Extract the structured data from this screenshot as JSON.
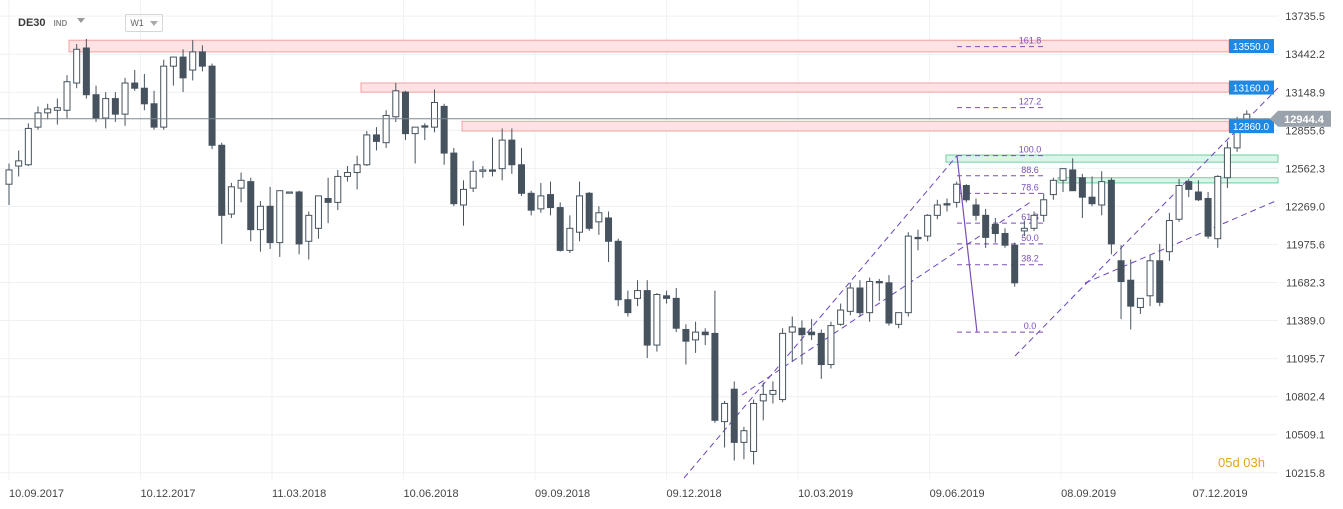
{
  "header": {
    "symbol": "DE30",
    "symbol_type": "IND",
    "timeframe": "W1"
  },
  "timer": "05d 03h",
  "colors": {
    "bull": "#ffffff",
    "bear": "#46535e",
    "wick": "#46535e",
    "resistance_fill": "#fde3e3",
    "resistance_stroke": "#f2a0a0",
    "support_fill": "#dcf5ea",
    "support_stroke": "#6fcf9f",
    "fib": "#7a4fb8",
    "channel": "#6a45c0",
    "price_tag": "#1e88e5",
    "current_tag": "#9aa3ab"
  },
  "chart_data": {
    "type": "candlestick",
    "title": "",
    "xlabel": "",
    "ylabel": "",
    "x_ticks": [
      "10.09.2017",
      "10.12.2017",
      "11.03.2018",
      "10.06.2018",
      "09.09.2018",
      "09.12.2018",
      "10.03.2019",
      "09.06.2019",
      "08.09.2019",
      "07.12.2019"
    ],
    "y_ticks": [
      "13735.5",
      "13442.2",
      "13148.9",
      "12855.6",
      "12562.3",
      "12269.0",
      "11975.6",
      "11682.3",
      "11389.0",
      "11095.7",
      "10802.4",
      "10509.1",
      "10215.8"
    ],
    "ylim": [
      10160,
      13860
    ],
    "current_price": "12944.4",
    "horizontal_levels": [
      {
        "label": "13550.0",
        "top": 13550,
        "bottom": 13460,
        "kind": "resistance"
      },
      {
        "label": "13160.0",
        "top": 13220,
        "bottom": 13150,
        "kind": "resistance"
      },
      {
        "label": "12860.0",
        "top": 12925,
        "bottom": 12850,
        "kind": "resistance"
      }
    ],
    "support_zones": [
      {
        "top": 12665,
        "bottom": 12610
      },
      {
        "top": 12490,
        "bottom": 12450
      }
    ],
    "fibonacci": {
      "low": 11300,
      "high": 12660,
      "levels": [
        {
          "label": "161.8",
          "ratio": 1.618
        },
        {
          "label": "127.2",
          "ratio": 1.272
        },
        {
          "label": "100.0",
          "ratio": 1.0
        },
        {
          "label": "88.6",
          "ratio": 0.886
        },
        {
          "label": "78.6",
          "ratio": 0.786
        },
        {
          "label": "61.8",
          "ratio": 0.618
        },
        {
          "label": "50.0",
          "ratio": 0.5
        },
        {
          "label": "38.2",
          "ratio": 0.382
        },
        {
          "label": "0.0",
          "ratio": 0.0
        }
      ]
    },
    "candles": [
      {
        "o": 12440,
        "h": 12600,
        "l": 12280,
        "c": 12550
      },
      {
        "o": 12580,
        "h": 12700,
        "l": 12500,
        "c": 12620
      },
      {
        "o": 12590,
        "h": 12910,
        "l": 12580,
        "c": 12870
      },
      {
        "o": 12880,
        "h": 13040,
        "l": 12860,
        "c": 12990
      },
      {
        "o": 12990,
        "h": 13060,
        "l": 12940,
        "c": 13020
      },
      {
        "o": 13010,
        "h": 13100,
        "l": 12900,
        "c": 13030
      },
      {
        "o": 13010,
        "h": 13280,
        "l": 12950,
        "c": 13230
      },
      {
        "o": 13220,
        "h": 13520,
        "l": 13180,
        "c": 13480
      },
      {
        "o": 13490,
        "h": 13560,
        "l": 13100,
        "c": 13130
      },
      {
        "o": 13130,
        "h": 13200,
        "l": 12920,
        "c": 12950
      },
      {
        "o": 12950,
        "h": 13150,
        "l": 12870,
        "c": 13100
      },
      {
        "o": 13100,
        "h": 13150,
        "l": 12920,
        "c": 12980
      },
      {
        "o": 12980,
        "h": 13260,
        "l": 12890,
        "c": 13220
      },
      {
        "o": 13220,
        "h": 13320,
        "l": 13160,
        "c": 13180
      },
      {
        "o": 13180,
        "h": 13290,
        "l": 13010,
        "c": 13060
      },
      {
        "o": 13060,
        "h": 13160,
        "l": 12860,
        "c": 12880
      },
      {
        "o": 12880,
        "h": 13400,
        "l": 12860,
        "c": 13350
      },
      {
        "o": 13350,
        "h": 13420,
        "l": 13200,
        "c": 13420
      },
      {
        "o": 13420,
        "h": 13480,
        "l": 13150,
        "c": 13260
      },
      {
        "o": 13320,
        "h": 13550,
        "l": 13240,
        "c": 13460
      },
      {
        "o": 13460,
        "h": 13510,
        "l": 13310,
        "c": 13350
      },
      {
        "o": 13350,
        "h": 13370,
        "l": 12710,
        "c": 12740
      },
      {
        "o": 12740,
        "h": 12760,
        "l": 11980,
        "c": 12200
      },
      {
        "o": 12210,
        "h": 12450,
        "l": 12180,
        "c": 12420
      },
      {
        "o": 12410,
        "h": 12530,
        "l": 12300,
        "c": 12470
      },
      {
        "o": 12460,
        "h": 12490,
        "l": 12000,
        "c": 12090
      },
      {
        "o": 12090,
        "h": 12310,
        "l": 11920,
        "c": 12270
      },
      {
        "o": 12270,
        "h": 12420,
        "l": 11940,
        "c": 11990
      },
      {
        "o": 11990,
        "h": 12380,
        "l": 11880,
        "c": 12390
      },
      {
        "o": 12380,
        "h": 12380,
        "l": 12380,
        "c": 12380
      },
      {
        "o": 12380,
        "h": 12390,
        "l": 11900,
        "c": 11980
      },
      {
        "o": 12000,
        "h": 12230,
        "l": 11860,
        "c": 12200
      },
      {
        "o": 12100,
        "h": 12330,
        "l": 12020,
        "c": 12350
      },
      {
        "o": 12330,
        "h": 12490,
        "l": 12140,
        "c": 12300
      },
      {
        "o": 12300,
        "h": 12550,
        "l": 12240,
        "c": 12500
      },
      {
        "o": 12500,
        "h": 12580,
        "l": 12460,
        "c": 12530
      },
      {
        "o": 12530,
        "h": 12660,
        "l": 12400,
        "c": 12590
      },
      {
        "o": 12590,
        "h": 12850,
        "l": 12580,
        "c": 12820
      },
      {
        "o": 12820,
        "h": 12880,
        "l": 12700,
        "c": 12770
      },
      {
        "o": 12760,
        "h": 13010,
        "l": 12720,
        "c": 12970
      },
      {
        "o": 12960,
        "h": 13220,
        "l": 12920,
        "c": 13160
      },
      {
        "o": 13150,
        "h": 13160,
        "l": 12780,
        "c": 12830
      },
      {
        "o": 12830,
        "h": 12880,
        "l": 12600,
        "c": 12880
      },
      {
        "o": 12890,
        "h": 12910,
        "l": 12780,
        "c": 12880
      },
      {
        "o": 12880,
        "h": 13170,
        "l": 12840,
        "c": 13070
      },
      {
        "o": 13040,
        "h": 13060,
        "l": 12590,
        "c": 12680
      },
      {
        "o": 12680,
        "h": 12720,
        "l": 12270,
        "c": 12290
      },
      {
        "o": 12280,
        "h": 12470,
        "l": 12120,
        "c": 12400
      },
      {
        "o": 12410,
        "h": 12620,
        "l": 12380,
        "c": 12540
      },
      {
        "o": 12540,
        "h": 12580,
        "l": 12490,
        "c": 12550
      },
      {
        "o": 12550,
        "h": 12800,
        "l": 12500,
        "c": 12540
      },
      {
        "o": 12560,
        "h": 12870,
        "l": 12470,
        "c": 12780
      },
      {
        "o": 12780,
        "h": 12870,
        "l": 12520,
        "c": 12590
      },
      {
        "o": 12590,
        "h": 12720,
        "l": 12350,
        "c": 12370
      },
      {
        "o": 12370,
        "h": 12390,
        "l": 12200,
        "c": 12240
      },
      {
        "o": 12250,
        "h": 12450,
        "l": 12220,
        "c": 12350
      },
      {
        "o": 12360,
        "h": 12460,
        "l": 12200,
        "c": 12260
      },
      {
        "o": 12260,
        "h": 12300,
        "l": 11920,
        "c": 11930
      },
      {
        "o": 11930,
        "h": 12200,
        "l": 11910,
        "c": 12100
      },
      {
        "o": 12070,
        "h": 12460,
        "l": 12000,
        "c": 12350
      },
      {
        "o": 12370,
        "h": 12380,
        "l": 12080,
        "c": 12100
      },
      {
        "o": 12150,
        "h": 12270,
        "l": 12050,
        "c": 12220
      },
      {
        "o": 12180,
        "h": 12230,
        "l": 11840,
        "c": 12000
      },
      {
        "o": 12000,
        "h": 12020,
        "l": 11500,
        "c": 11550
      },
      {
        "o": 11550,
        "h": 11620,
        "l": 11420,
        "c": 11450
      },
      {
        "o": 11560,
        "h": 11700,
        "l": 11500,
        "c": 11620
      },
      {
        "o": 11620,
        "h": 11700,
        "l": 11100,
        "c": 11200
      },
      {
        "o": 11200,
        "h": 11600,
        "l": 11150,
        "c": 11590
      },
      {
        "o": 11580,
        "h": 11620,
        "l": 11520,
        "c": 11560
      },
      {
        "o": 11560,
        "h": 11640,
        "l": 11300,
        "c": 11330
      },
      {
        "o": 11320,
        "h": 11360,
        "l": 11050,
        "c": 11230
      },
      {
        "o": 11240,
        "h": 11380,
        "l": 11140,
        "c": 11300
      },
      {
        "o": 11300,
        "h": 11330,
        "l": 11200,
        "c": 11280
      },
      {
        "o": 11290,
        "h": 11620,
        "l": 10600,
        "c": 10620
      },
      {
        "o": 10610,
        "h": 10770,
        "l": 10410,
        "c": 10750
      },
      {
        "o": 10860,
        "h": 10920,
        "l": 10310,
        "c": 10450
      },
      {
        "o": 10450,
        "h": 10570,
        "l": 10320,
        "c": 10540
      },
      {
        "o": 10380,
        "h": 10780,
        "l": 10280,
        "c": 10750
      },
      {
        "o": 10770,
        "h": 10910,
        "l": 10620,
        "c": 10820
      },
      {
        "o": 10820,
        "h": 10920,
        "l": 10750,
        "c": 10850
      },
      {
        "o": 10780,
        "h": 11330,
        "l": 10760,
        "c": 11290
      },
      {
        "o": 11300,
        "h": 11420,
        "l": 11070,
        "c": 11340
      },
      {
        "o": 11330,
        "h": 11390,
        "l": 11050,
        "c": 11280
      },
      {
        "o": 11300,
        "h": 11400,
        "l": 11240,
        "c": 11280
      },
      {
        "o": 11290,
        "h": 11320,
        "l": 10940,
        "c": 11050
      },
      {
        "o": 11050,
        "h": 11380,
        "l": 11020,
        "c": 11350
      },
      {
        "o": 11360,
        "h": 11520,
        "l": 11350,
        "c": 11470
      },
      {
        "o": 11460,
        "h": 11680,
        "l": 11430,
        "c": 11640
      },
      {
        "o": 11640,
        "h": 11700,
        "l": 11420,
        "c": 11450
      },
      {
        "o": 11450,
        "h": 11720,
        "l": 11380,
        "c": 11690
      },
      {
        "o": 11690,
        "h": 11710,
        "l": 11540,
        "c": 11680
      },
      {
        "o": 11680,
        "h": 11740,
        "l": 11350,
        "c": 11370
      },
      {
        "o": 11360,
        "h": 11450,
        "l": 11330,
        "c": 11450
      },
      {
        "o": 11450,
        "h": 12070,
        "l": 11420,
        "c": 12040
      },
      {
        "o": 12030,
        "h": 12090,
        "l": 11930,
        "c": 12020
      },
      {
        "o": 12040,
        "h": 12210,
        "l": 12000,
        "c": 12200
      },
      {
        "o": 12200,
        "h": 12320,
        "l": 12170,
        "c": 12280
      },
      {
        "o": 12290,
        "h": 12330,
        "l": 12230,
        "c": 12280
      },
      {
        "o": 12300,
        "h": 12460,
        "l": 12260,
        "c": 12440
      },
      {
        "o": 12430,
        "h": 12440,
        "l": 12300,
        "c": 12320
      },
      {
        "o": 12280,
        "h": 12330,
        "l": 12160,
        "c": 12200
      },
      {
        "o": 12200,
        "h": 12250,
        "l": 11950,
        "c": 12030
      },
      {
        "o": 12130,
        "h": 12180,
        "l": 11990,
        "c": 12060
      },
      {
        "o": 12060,
        "h": 12100,
        "l": 11950,
        "c": 11970
      },
      {
        "o": 11970,
        "h": 11990,
        "l": 11650,
        "c": 11680
      },
      {
        "o": 12080,
        "h": 12160,
        "l": 12040,
        "c": 12100
      },
      {
        "o": 12100,
        "h": 12230,
        "l": 12080,
        "c": 12200
      },
      {
        "o": 12200,
        "h": 12370,
        "l": 12150,
        "c": 12320
      },
      {
        "o": 12360,
        "h": 12490,
        "l": 12320,
        "c": 12470
      },
      {
        "o": 12470,
        "h": 12560,
        "l": 12380,
        "c": 12560
      },
      {
        "o": 12550,
        "h": 12640,
        "l": 12420,
        "c": 12390
      },
      {
        "o": 12490,
        "h": 12520,
        "l": 12180,
        "c": 12340
      },
      {
        "o": 12340,
        "h": 12500,
        "l": 12270,
        "c": 12290
      },
      {
        "o": 12280,
        "h": 12540,
        "l": 12200,
        "c": 12460
      },
      {
        "o": 12470,
        "h": 12490,
        "l": 11900,
        "c": 11980
      },
      {
        "o": 11850,
        "h": 11970,
        "l": 11400,
        "c": 11690
      },
      {
        "o": 11700,
        "h": 11860,
        "l": 11320,
        "c": 11500
      },
      {
        "o": 11490,
        "h": 11560,
        "l": 11440,
        "c": 11560
      },
      {
        "o": 11580,
        "h": 11890,
        "l": 11500,
        "c": 11850
      },
      {
        "o": 11850,
        "h": 11980,
        "l": 11500,
        "c": 11530
      },
      {
        "o": 11920,
        "h": 12220,
        "l": 11850,
        "c": 12160
      },
      {
        "o": 12170,
        "h": 12480,
        "l": 12150,
        "c": 12430
      },
      {
        "o": 12460,
        "h": 12480,
        "l": 12340,
        "c": 12400
      },
      {
        "o": 12380,
        "h": 12470,
        "l": 12310,
        "c": 12320
      },
      {
        "o": 12330,
        "h": 12380,
        "l": 12020,
        "c": 12040
      },
      {
        "o": 12020,
        "h": 12510,
        "l": 11950,
        "c": 12500
      },
      {
        "o": 12490,
        "h": 12770,
        "l": 12410,
        "c": 12720
      },
      {
        "o": 12720,
        "h": 12960,
        "l": 12690,
        "c": 12930
      },
      {
        "o": 12920,
        "h": 13010,
        "l": 12900,
        "c": 12980
      }
    ]
  }
}
